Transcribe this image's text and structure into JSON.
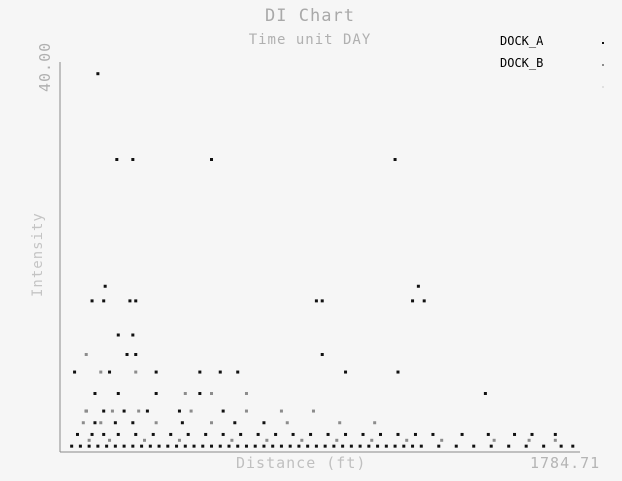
{
  "chart_data": {
    "type": "scatter",
    "title": "DI Chart",
    "subtitle": "Time unit  DAY",
    "xlabel": "Distance  (ft)",
    "ylabel": "Intensity",
    "xlim": [
      0,
      1784.71
    ],
    "ylim": [
      0,
      40.0
    ],
    "x_max_label": "1784.71",
    "y_max_label": "40.00",
    "grid": false,
    "legend_position": "top-right",
    "series": [
      {
        "name": "DOCK_A",
        "color": "#111111",
        "points": [
          [
            130,
            38.8
          ],
          [
            195,
            30.0
          ],
          [
            250,
            30.0
          ],
          [
            520,
            30.0
          ],
          [
            1150,
            30.0
          ],
          [
            155,
            17.0
          ],
          [
            1230,
            17.0
          ],
          [
            110,
            15.5
          ],
          [
            150,
            15.5
          ],
          [
            240,
            15.5
          ],
          [
            260,
            15.5
          ],
          [
            880,
            15.5
          ],
          [
            900,
            15.5
          ],
          [
            1210,
            15.5
          ],
          [
            1250,
            15.5
          ],
          [
            200,
            12.0
          ],
          [
            250,
            12.0
          ],
          [
            230,
            10.0
          ],
          [
            260,
            10.0
          ],
          [
            900,
            10.0
          ],
          [
            50,
            8.2
          ],
          [
            170,
            8.2
          ],
          [
            330,
            8.2
          ],
          [
            480,
            8.2
          ],
          [
            550,
            8.2
          ],
          [
            610,
            8.2
          ],
          [
            980,
            8.2
          ],
          [
            1160,
            8.2
          ],
          [
            120,
            6.0
          ],
          [
            200,
            6.0
          ],
          [
            330,
            6.0
          ],
          [
            480,
            6.0
          ],
          [
            1460,
            6.0
          ],
          [
            90,
            4.2
          ],
          [
            150,
            4.2
          ],
          [
            220,
            4.2
          ],
          [
            300,
            4.2
          ],
          [
            410,
            4.2
          ],
          [
            560,
            4.2
          ],
          [
            120,
            3.0
          ],
          [
            190,
            3.0
          ],
          [
            250,
            3.0
          ],
          [
            420,
            3.0
          ],
          [
            600,
            3.0
          ],
          [
            700,
            3.0
          ],
          [
            60,
            1.8
          ],
          [
            110,
            1.8
          ],
          [
            150,
            1.8
          ],
          [
            200,
            1.8
          ],
          [
            260,
            1.8
          ],
          [
            320,
            1.8
          ],
          [
            380,
            1.8
          ],
          [
            440,
            1.8
          ],
          [
            500,
            1.8
          ],
          [
            560,
            1.8
          ],
          [
            620,
            1.8
          ],
          [
            680,
            1.8
          ],
          [
            740,
            1.8
          ],
          [
            800,
            1.8
          ],
          [
            860,
            1.8
          ],
          [
            920,
            1.8
          ],
          [
            980,
            1.8
          ],
          [
            1040,
            1.8
          ],
          [
            1100,
            1.8
          ],
          [
            1160,
            1.8
          ],
          [
            1220,
            1.8
          ],
          [
            1280,
            1.8
          ],
          [
            1380,
            1.8
          ],
          [
            1470,
            1.8
          ],
          [
            1560,
            1.8
          ],
          [
            1620,
            1.8
          ],
          [
            1700,
            1.8
          ],
          [
            40,
            0.6
          ],
          [
            70,
            0.6
          ],
          [
            100,
            0.6
          ],
          [
            130,
            0.6
          ],
          [
            160,
            0.6
          ],
          [
            190,
            0.6
          ],
          [
            220,
            0.6
          ],
          [
            250,
            0.6
          ],
          [
            280,
            0.6
          ],
          [
            310,
            0.6
          ],
          [
            340,
            0.6
          ],
          [
            370,
            0.6
          ],
          [
            400,
            0.6
          ],
          [
            430,
            0.6
          ],
          [
            460,
            0.6
          ],
          [
            490,
            0.6
          ],
          [
            520,
            0.6
          ],
          [
            550,
            0.6
          ],
          [
            580,
            0.6
          ],
          [
            610,
            0.6
          ],
          [
            640,
            0.6
          ],
          [
            670,
            0.6
          ],
          [
            700,
            0.6
          ],
          [
            730,
            0.6
          ],
          [
            760,
            0.6
          ],
          [
            790,
            0.6
          ],
          [
            820,
            0.6
          ],
          [
            850,
            0.6
          ],
          [
            880,
            0.6
          ],
          [
            910,
            0.6
          ],
          [
            940,
            0.6
          ],
          [
            970,
            0.6
          ],
          [
            1000,
            0.6
          ],
          [
            1030,
            0.6
          ],
          [
            1060,
            0.6
          ],
          [
            1090,
            0.6
          ],
          [
            1120,
            0.6
          ],
          [
            1150,
            0.6
          ],
          [
            1180,
            0.6
          ],
          [
            1210,
            0.6
          ],
          [
            1240,
            0.6
          ],
          [
            1300,
            0.6
          ],
          [
            1360,
            0.6
          ],
          [
            1420,
            0.6
          ],
          [
            1480,
            0.6
          ],
          [
            1540,
            0.6
          ],
          [
            1600,
            0.6
          ],
          [
            1660,
            0.6
          ],
          [
            1720,
            0.6
          ],
          [
            1760,
            0.6
          ]
        ]
      },
      {
        "name": "DOCK_B",
        "color": "#8c8c8c",
        "points": [
          [
            90,
            10.0
          ],
          [
            140,
            8.2
          ],
          [
            260,
            8.2
          ],
          [
            430,
            6.0
          ],
          [
            520,
            6.0
          ],
          [
            640,
            6.0
          ],
          [
            90,
            4.2
          ],
          [
            180,
            4.2
          ],
          [
            270,
            4.2
          ],
          [
            450,
            4.2
          ],
          [
            640,
            4.2
          ],
          [
            760,
            4.2
          ],
          [
            870,
            4.2
          ],
          [
            80,
            3.0
          ],
          [
            140,
            3.0
          ],
          [
            330,
            3.0
          ],
          [
            520,
            3.0
          ],
          [
            780,
            3.0
          ],
          [
            960,
            3.0
          ],
          [
            1080,
            3.0
          ],
          [
            100,
            1.2
          ],
          [
            170,
            1.2
          ],
          [
            290,
            1.2
          ],
          [
            410,
            1.2
          ],
          [
            590,
            1.2
          ],
          [
            710,
            1.2
          ],
          [
            830,
            1.2
          ],
          [
            950,
            1.2
          ],
          [
            1070,
            1.2
          ],
          [
            1190,
            1.2
          ],
          [
            1310,
            1.2
          ],
          [
            1490,
            1.2
          ],
          [
            1610,
            1.2
          ],
          [
            1700,
            1.2
          ]
        ]
      },
      {
        "name": "",
        "color": "#e0e0e0",
        "points": []
      }
    ]
  }
}
